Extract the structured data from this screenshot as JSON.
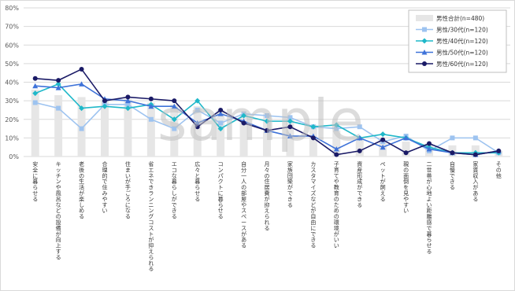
{
  "chart_data": {
    "type": "bar",
    "categories": [
      "安全に暮らせる",
      "キッチンや風呂などの設備が向上する",
      "老後の生活が楽しめる",
      "合理的で住みやすい",
      "住まいが手ごろになる",
      "省エネできランニングコストが抑えられる",
      "エコな暮らしができる",
      "広々と暮らせる",
      "コンパクトに暮らせる",
      "自分一人の部屋やスペースがある",
      "月々の住居費が抑えられる",
      "家族団欒ができる",
      "カスタマイズなどが自由にできる",
      "子育てや教育のための環境がいい",
      "資産形成ができる",
      "ペットが飼える",
      "親の面倒を見やすい",
      "二世帯が心地よい距離感で暮らせる",
      "自慢できる",
      "家賃収入がある",
      "その他"
    ],
    "ylim": [
      0,
      80
    ],
    "yticks": [
      "0%",
      "10%",
      "20%",
      "30%",
      "40%",
      "50%",
      "60%",
      "70%",
      "80%"
    ],
    "grid": true,
    "legend_position": "top-right",
    "series": [
      {
        "name": "男性合計(n=480)",
        "kind": "bar",
        "color": "#e6e6e6",
        "values": [
          36,
          33,
          32,
          31,
          31,
          29,
          28,
          27,
          25,
          23,
          23,
          20,
          17,
          14,
          10,
          9,
          8,
          7,
          6,
          6,
          3
        ]
      },
      {
        "name": "男性/30代(n=120)",
        "kind": "line",
        "color": "#9dc3f0",
        "marker": "square",
        "values": [
          29,
          26,
          15,
          28,
          28,
          20,
          15,
          25,
          18,
          23,
          22,
          21,
          16,
          15,
          16,
          8,
          11,
          3,
          10,
          10,
          2
        ]
      },
      {
        "name": "男性/40代(n=120)",
        "kind": "line",
        "color": "#1fb8c9",
        "marker": "diamond",
        "values": [
          34,
          39,
          26,
          27,
          26,
          28,
          20,
          30,
          15,
          22,
          19,
          19,
          16,
          17,
          10,
          12,
          10,
          5,
          2,
          2,
          2
        ]
      },
      {
        "name": "男性/50代(n=120)",
        "kind": "line",
        "color": "#3f73d9",
        "marker": "triangle",
        "values": [
          38,
          37,
          39,
          31,
          30,
          27,
          27,
          18,
          23,
          19,
          14,
          11,
          11,
          4,
          10,
          5,
          10,
          4,
          2,
          1,
          3
        ]
      },
      {
        "name": "男性/60代(n=120)",
        "kind": "line",
        "color": "#1a1a66",
        "marker": "circle",
        "values": [
          42,
          41,
          47,
          30,
          32,
          31,
          30,
          16,
          25,
          18,
          14,
          16,
          10,
          1,
          3,
          9,
          2,
          7,
          2,
          1,
          3
        ]
      }
    ]
  },
  "watermark": "sample"
}
